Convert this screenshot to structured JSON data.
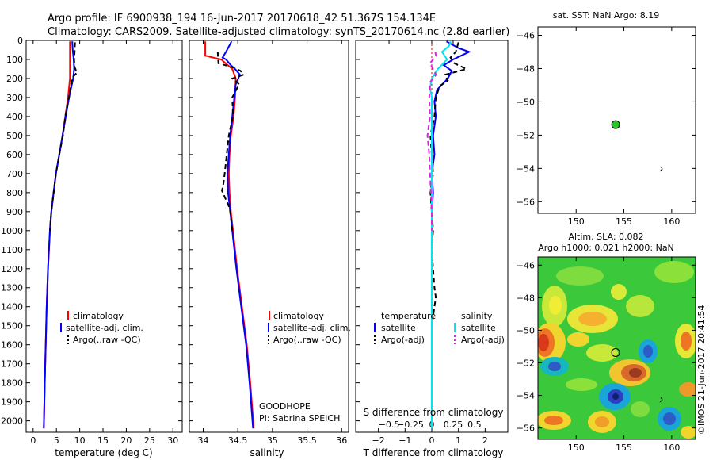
{
  "header": {
    "line1": "Argo profile: IF 6900938_194 16-Jun-2017 20170618_42 51.367S 154.134E",
    "line2": "Climatology: CARS2009. Satellite-adjusted climatology: synTS_20170614.nc (2.8d earlier)"
  },
  "side_text": "©IMOS 21-Jun-2017 20:41:54",
  "colors": {
    "climatology": "#ff0000",
    "satellite": "#0000ff",
    "argo": "#000000",
    "sal_satellite": "#00e5ee",
    "sal_argo": "#e020e0",
    "float_marker": "#22cc22"
  },
  "chart_data": [
    {
      "type": "line",
      "id": "temperature",
      "xlabel": "temperature (deg C)",
      "ylabel": "",
      "xlim": [
        -1.5,
        32
      ],
      "ylim": [
        2060,
        0
      ],
      "xticks": [
        0,
        5,
        10,
        15,
        20,
        25,
        30
      ],
      "yticks": [
        0,
        100,
        200,
        300,
        400,
        500,
        600,
        700,
        800,
        900,
        1000,
        1100,
        1200,
        1300,
        1400,
        1500,
        1600,
        1700,
        1800,
        1900,
        2000
      ],
      "legend": [
        "climatology",
        "satellite-adj. clim.",
        "Argo(..raw -QC)"
      ],
      "series": [
        {
          "name": "climatology",
          "depth": [
            5,
            50,
            100,
            150,
            200,
            300,
            400,
            500,
            600,
            700,
            800,
            900,
            1000,
            1200,
            1400,
            1600,
            1800,
            2040
          ],
          "values": [
            7.9,
            7.9,
            7.9,
            7.9,
            7.9,
            7.5,
            6.9,
            6.3,
            5.6,
            4.9,
            4.4,
            3.9,
            3.6,
            3.2,
            2.9,
            2.7,
            2.5,
            2.3
          ]
        },
        {
          "name": "satellite-adj. clim.",
          "depth": [
            5,
            50,
            100,
            150,
            200,
            300,
            400,
            500,
            600,
            700,
            800,
            900,
            1000,
            1200,
            1400,
            1600,
            1800,
            2040
          ],
          "values": [
            8.4,
            8.5,
            8.7,
            8.8,
            8.6,
            7.7,
            7.0,
            6.3,
            5.6,
            4.9,
            4.4,
            3.9,
            3.6,
            3.2,
            2.9,
            2.7,
            2.5,
            2.3
          ]
        },
        {
          "name": "Argo(..raw -QC)",
          "depth": [
            10,
            60,
            100,
            140,
            170,
            190,
            210,
            300,
            400,
            500,
            600,
            700,
            800,
            900,
            1000
          ],
          "values": [
            9.0,
            8.9,
            8.8,
            8.9,
            9.4,
            8.6,
            8.3,
            7.7,
            6.9,
            6.4,
            5.6,
            4.9,
            4.4,
            3.9,
            3.6
          ]
        }
      ]
    },
    {
      "type": "line",
      "id": "salinity",
      "xlabel": "salinity",
      "ylabel": "",
      "xlim": [
        33.8,
        36.1
      ],
      "ylim": [
        2060,
        0
      ],
      "xticks": [
        34,
        34.5,
        35,
        35.5,
        36
      ],
      "legend": [
        "climatology",
        "satellite-adj. clim.",
        "Argo(..raw -QC)"
      ],
      "annotations": [
        "GOODHOPE",
        "PI: Sabrina SPEICH"
      ],
      "series": [
        {
          "name": "climatology",
          "depth": [
            5,
            80,
            100,
            150,
            200,
            300,
            400,
            500,
            600,
            700,
            800,
            900,
            1000,
            1200,
            1400,
            1600,
            1800,
            2040
          ],
          "values": [
            34.03,
            34.03,
            34.26,
            34.42,
            34.47,
            34.46,
            34.44,
            34.4,
            34.38,
            34.37,
            34.38,
            34.4,
            34.43,
            34.49,
            34.56,
            34.63,
            34.68,
            34.73
          ]
        },
        {
          "name": "satellite-adj. clim.",
          "depth": [
            5,
            60,
            90,
            100,
            130,
            150,
            180,
            230,
            300,
            400,
            500,
            600,
            700,
            800,
            900,
            1000,
            1200,
            1400,
            1600,
            1800,
            2040
          ],
          "values": [
            34.41,
            34.33,
            34.28,
            34.33,
            34.4,
            34.46,
            34.53,
            34.47,
            34.45,
            34.42,
            34.39,
            34.37,
            34.35,
            34.36,
            34.39,
            34.42,
            34.48,
            34.55,
            34.62,
            34.67,
            34.72
          ]
        },
        {
          "name": "Argo(..raw -QC)",
          "depth": [
            60,
            120,
            140,
            160,
            180,
            200,
            230,
            300,
            400,
            500,
            600,
            700,
            760,
            790,
            830,
            880,
            900,
            1000
          ],
          "values": [
            34.21,
            34.22,
            34.42,
            34.54,
            34.58,
            34.42,
            34.52,
            34.42,
            34.43,
            34.37,
            34.34,
            34.31,
            34.29,
            34.27,
            34.32,
            34.38,
            34.39,
            34.42
          ]
        }
      ]
    },
    {
      "type": "line",
      "id": "difference",
      "xlabel": "T difference from climatology",
      "xlabel2": "S difference from climatology",
      "xlim": [
        -2.85,
        2.85
      ],
      "xlim2": [
        -0.89,
        0.89
      ],
      "ylim": [
        2060,
        0
      ],
      "xticks": [
        -2,
        -1,
        0,
        1,
        2
      ],
      "xticks2": [
        -0.5,
        -0.25,
        0,
        0.25,
        0.5
      ],
      "legend_headers": [
        "temperature",
        "salinity"
      ],
      "legend": [
        "satellite",
        "Argo(-adj)",
        "satellite",
        "Argo(-adj)"
      ],
      "series": [
        {
          "name": "satellite",
          "quantity": "temperature",
          "depth": [
            5,
            40,
            60,
            80,
            100,
            130,
            160,
            200,
            260,
            320,
            400,
            500,
            600,
            700,
            800,
            900,
            1000,
            1200,
            1400,
            1600,
            1800,
            2040
          ],
          "values": [
            0.55,
            1.0,
            1.4,
            1.1,
            0.8,
            0.45,
            0.75,
            0.6,
            0.2,
            0.1,
            0.15,
            0.05,
            0.1,
            0.0,
            0.05,
            0.0,
            0.0,
            0.0,
            0.0,
            0.0,
            0.0,
            0.0
          ]
        },
        {
          "name": "Argo(-adj)",
          "quantity": "temperature",
          "depth": [
            10,
            60,
            90,
            120,
            150,
            180,
            210,
            240,
            300,
            400,
            500,
            600,
            700,
            800,
            900,
            1000,
            1100,
            1200,
            1300,
            1350,
            1400,
            1450,
            1500
          ],
          "values": [
            1.0,
            0.9,
            0.7,
            0.85,
            1.3,
            0.5,
            0.6,
            0.3,
            0.15,
            0.1,
            -0.05,
            0.0,
            0.05,
            -0.05,
            0.0,
            0.05,
            0.0,
            0.05,
            0.1,
            0.15,
            0.1,
            0.05,
            0.0
          ]
        },
        {
          "name": "satellite",
          "quantity": "salinity",
          "depth": [
            5,
            30,
            60,
            100,
            150,
            200,
            250,
            300,
            400,
            500,
            600,
            700,
            800,
            900,
            1000,
            1200,
            1400,
            1600,
            1800,
            2040
          ],
          "values": [
            0.22,
            0.2,
            0.12,
            0.18,
            0.07,
            0.0,
            -0.02,
            0.0,
            0.0,
            0.0,
            0.0,
            0.0,
            0.0,
            0.0,
            0.0,
            0.0,
            0.0,
            0.0,
            0.0,
            0.0
          ]
        },
        {
          "name": "Argo(-adj)",
          "quantity": "salinity",
          "depth": [
            60,
            80,
            120,
            180,
            220,
            300,
            400,
            500,
            600,
            700,
            800,
            900,
            1000
          ],
          "values": [
            0.04,
            0.05,
            -0.02,
            0.05,
            -0.02,
            -0.03,
            -0.02,
            -0.05,
            -0.03,
            -0.02,
            -0.01,
            0.0,
            0.0
          ]
        }
      ]
    },
    {
      "type": "scatter",
      "id": "sst_map",
      "title": "sat. SST: NaN Argo: 8.19",
      "xlim": [
        146,
        162.5
      ],
      "ylim": [
        -56.7,
        -45.5
      ],
      "xticks": [
        150,
        155,
        160
      ],
      "yticks": [
        -46,
        -48,
        -50,
        -52,
        -54,
        -56
      ],
      "points": [
        {
          "lon": 154.134,
          "lat": -51.367
        }
      ]
    },
    {
      "type": "heatmap",
      "id": "sla_map",
      "title_line1": "Altim. SLA: 0.082",
      "title_line2": "Argo h1000: 0.021 h2000: NaN",
      "xlim": [
        146,
        162.5
      ],
      "ylim": [
        -56.7,
        -45.5
      ],
      "xticks": [
        150,
        155,
        160
      ],
      "yticks": [
        -46,
        -48,
        -50,
        -52,
        -54,
        -56
      ],
      "points": [
        {
          "lon": 154.134,
          "lat": -51.367
        }
      ]
    }
  ]
}
